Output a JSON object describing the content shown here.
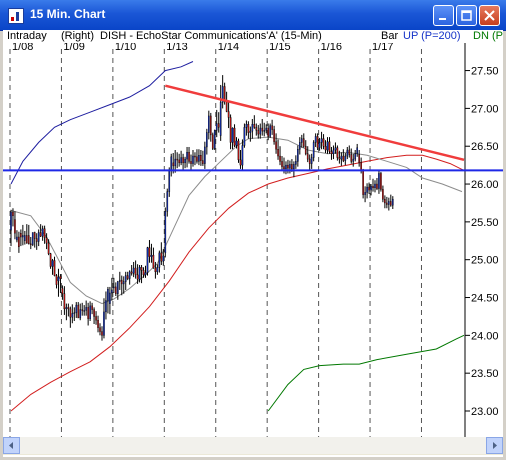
{
  "window": {
    "title": "15 Min. Chart"
  },
  "header": {
    "interval": "Intraday",
    "axis_side": "(Right)",
    "symbol": "DISH - EchoStar Communications'A' (15-Min)",
    "bar_mode": "Bar",
    "up_label": "UP (P=200)",
    "dn_label": "DN (P"
  },
  "colors": {
    "up": "#1432c8",
    "down": "#c81414",
    "ma_gray": "#8c8c8c",
    "ma_red": "#d21e1e",
    "dn_green": "#007800",
    "resistance": "#f03c3c",
    "support": "#1e28e6",
    "upper_band": "#1e1ea0"
  },
  "chart_data": {
    "type": "candlestick",
    "x_labels": [
      "1/08",
      "1/09",
      "1/10",
      "1/13",
      "1/14",
      "1/15",
      "1/16",
      "1/17"
    ],
    "ylim": [
      23.0,
      27.6
    ],
    "y_ticks": [
      "27.50",
      "27.00",
      "26.50",
      "26.00",
      "25.50",
      "25.00",
      "24.50",
      "24.00",
      "23.50",
      "23.00"
    ],
    "session_starts": [
      0,
      26,
      52,
      78,
      104,
      130,
      156,
      182,
      208
    ],
    "resistance_line": {
      "from": [
        78,
        27.3
      ],
      "to": [
        229,
        26.32
      ]
    },
    "support_line": {
      "from": [
        0,
        26.18
      ],
      "to": [
        229,
        26.18
      ]
    },
    "ohlc": [
      [
        25.39,
        25.66,
        25.18,
        25.63
      ],
      [
        25.63,
        25.68,
        25.44,
        25.58
      ],
      [
        25.53,
        25.64,
        25.27,
        25.35
      ],
      [
        25.26,
        25.39,
        25.23,
        25.3
      ],
      [
        25.3,
        25.37,
        25.09,
        25.17
      ],
      [
        25.35,
        25.4,
        25.18,
        25.3
      ],
      [
        25.3,
        25.46,
        25.19,
        25.32
      ],
      [
        25.25,
        25.38,
        25.2,
        25.32
      ],
      [
        25.32,
        25.47,
        25.21,
        25.22
      ],
      [
        25.32,
        25.46,
        25.2,
        25.21
      ],
      [
        25.21,
        25.3,
        25.14,
        25.2
      ],
      [
        25.2,
        25.36,
        25.18,
        25.36
      ],
      [
        25.36,
        25.37,
        25.16,
        25.28
      ],
      [
        25.28,
        25.35,
        25.13,
        25.24
      ],
      [
        25.24,
        25.4,
        25.18,
        25.36
      ],
      [
        25.36,
        25.47,
        25.3,
        25.31
      ],
      [
        25.31,
        25.45,
        25.25,
        25.41
      ],
      [
        25.41,
        25.45,
        25.21,
        25.29
      ],
      [
        25.29,
        25.35,
        25.14,
        25.22
      ],
      [
        25.22,
        25.27,
        25.06,
        25.08
      ],
      [
        25.08,
        25.09,
        24.88,
        24.91
      ],
      [
        24.91,
        25.01,
        24.8,
        24.99
      ],
      [
        24.99,
        25.04,
        24.78,
        24.79
      ],
      [
        24.79,
        24.81,
        24.62,
        24.67
      ],
      [
        24.72,
        24.88,
        24.51,
        24.77
      ],
      [
        24.78,
        24.81,
        24.56,
        24.75
      ],
      [
        24.62,
        24.66,
        24.47,
        24.55
      ],
      [
        24.55,
        24.65,
        24.27,
        24.35
      ],
      [
        24.35,
        24.42,
        24.2,
        24.37
      ],
      [
        24.37,
        24.42,
        24.25,
        24.35
      ],
      [
        24.35,
        24.38,
        24.1,
        24.24
      ],
      [
        24.24,
        24.41,
        24.16,
        24.29
      ],
      [
        24.29,
        24.37,
        24.19,
        24.3
      ],
      [
        24.3,
        24.44,
        24.23,
        24.4
      ],
      [
        24.4,
        24.44,
        24.23,
        24.23
      ],
      [
        24.23,
        24.42,
        24.2,
        24.34
      ],
      [
        24.34,
        24.43,
        24.26,
        24.33
      ],
      [
        24.33,
        24.4,
        24.26,
        24.33
      ],
      [
        24.33,
        24.46,
        24.26,
        24.37
      ],
      [
        24.37,
        24.43,
        24.13,
        24.22
      ],
      [
        24.22,
        24.45,
        24.19,
        24.39
      ],
      [
        24.39,
        24.43,
        24.28,
        24.34
      ],
      [
        24.34,
        24.37,
        24.15,
        24.25
      ],
      [
        24.25,
        24.32,
        24.14,
        24.2
      ],
      [
        24.2,
        24.26,
        24.04,
        24.1
      ],
      [
        24.1,
        24.16,
        24.0,
        24.05
      ],
      [
        24.05,
        24.12,
        23.93,
        24.0
      ],
      [
        24.0,
        24.49,
        23.96,
        24.31
      ],
      [
        24.31,
        24.58,
        24.21,
        24.46
      ],
      [
        24.46,
        24.64,
        24.29,
        24.61
      ],
      [
        24.42,
        24.64,
        24.28,
        24.56
      ],
      [
        24.56,
        24.76,
        24.46,
        24.6
      ],
      [
        24.64,
        24.76,
        24.56,
        24.64
      ],
      [
        24.64,
        24.7,
        24.52,
        24.55
      ],
      [
        24.55,
        24.72,
        24.47,
        24.71
      ],
      [
        24.71,
        24.84,
        24.6,
        24.73
      ],
      [
        24.73,
        24.79,
        24.53,
        24.68
      ],
      [
        24.68,
        24.78,
        24.55,
        24.71
      ],
      [
        24.71,
        24.84,
        24.6,
        24.79
      ],
      [
        24.79,
        24.84,
        24.73,
        24.75
      ],
      [
        24.75,
        24.86,
        24.67,
        24.84
      ],
      [
        24.84,
        24.93,
        24.79,
        24.82
      ],
      [
        24.82,
        24.97,
        24.77,
        24.89
      ],
      [
        24.89,
        24.99,
        24.75,
        24.8
      ],
      [
        24.8,
        24.94,
        24.68,
        24.74
      ],
      [
        24.74,
        24.93,
        24.7,
        24.9
      ],
      [
        24.9,
        24.93,
        24.69,
        24.86
      ],
      [
        24.86,
        24.9,
        24.76,
        24.8
      ],
      [
        24.8,
        24.92,
        24.76,
        24.83
      ],
      [
        24.83,
        25.17,
        24.79,
        25.16
      ],
      [
        25.16,
        25.26,
        24.96,
        25.04
      ],
      [
        25.04,
        25.21,
        24.96,
        25.06
      ],
      [
        25.06,
        25.16,
        24.88,
        24.89
      ],
      [
        24.89,
        24.97,
        24.75,
        24.84
      ],
      [
        24.84,
        24.94,
        24.8,
        24.9
      ],
      [
        24.9,
        25.12,
        24.83,
        25.09
      ],
      [
        25.09,
        25.23,
        24.93,
        24.98
      ],
      [
        24.98,
        25.14,
        24.92,
        25.05
      ],
      [
        25.09,
        25.69,
        25.03,
        25.64
      ],
      [
        25.64,
        25.94,
        25.57,
        25.9
      ],
      [
        25.9,
        26.22,
        25.83,
        26.18
      ],
      [
        26.18,
        26.4,
        26.1,
        26.36
      ],
      [
        26.28,
        26.41,
        26.14,
        26.24
      ],
      [
        26.24,
        26.45,
        26.15,
        26.33
      ],
      [
        26.33,
        26.42,
        26.21,
        26.32
      ],
      [
        26.32,
        26.4,
        26.23,
        26.28
      ],
      [
        26.28,
        26.44,
        26.25,
        26.35
      ],
      [
        26.35,
        26.4,
        26.19,
        26.28
      ],
      [
        26.28,
        26.36,
        26.21,
        26.33
      ],
      [
        26.33,
        26.49,
        26.22,
        26.42
      ],
      [
        26.42,
        26.49,
        26.27,
        26.3
      ],
      [
        26.3,
        26.39,
        26.18,
        26.27
      ],
      [
        26.27,
        26.45,
        26.23,
        26.37
      ],
      [
        26.37,
        26.42,
        26.25,
        26.36
      ],
      [
        26.36,
        26.46,
        26.27,
        26.3
      ],
      [
        26.3,
        26.46,
        26.25,
        26.38
      ],
      [
        26.38,
        26.45,
        26.24,
        26.31
      ],
      [
        26.31,
        26.44,
        26.24,
        26.27
      ],
      [
        26.27,
        26.56,
        26.2,
        26.49
      ],
      [
        26.49,
        26.73,
        26.39,
        26.68
      ],
      [
        26.68,
        26.97,
        26.59,
        26.9
      ],
      [
        26.9,
        26.94,
        26.56,
        26.65
      ],
      [
        26.65,
        26.68,
        26.45,
        26.47
      ],
      [
        26.47,
        26.72,
        26.45,
        26.71
      ],
      [
        26.71,
        26.98,
        26.62,
        26.8
      ],
      [
        26.8,
        26.95,
        26.68,
        26.75
      ],
      [
        26.64,
        27.31,
        26.57,
        27.08
      ],
      [
        27.08,
        27.44,
        27.0,
        27.29
      ],
      [
        27.29,
        27.34,
        27.05,
        27.09
      ],
      [
        27.09,
        27.22,
        26.95,
        26.96
      ],
      [
        26.96,
        27.08,
        26.74,
        26.88
      ],
      [
        26.88,
        26.92,
        26.46,
        26.55
      ],
      [
        26.55,
        26.75,
        26.46,
        26.74
      ],
      [
        26.74,
        26.79,
        26.49,
        26.51
      ],
      [
        26.51,
        26.62,
        26.47,
        26.57
      ],
      [
        26.57,
        26.6,
        26.28,
        26.32
      ],
      [
        26.32,
        26.45,
        26.2,
        26.25
      ],
      [
        26.25,
        26.59,
        26.19,
        26.51
      ],
      [
        26.51,
        26.8,
        26.48,
        26.75
      ],
      [
        26.75,
        26.84,
        26.64,
        26.79
      ],
      [
        26.79,
        26.83,
        26.6,
        26.68
      ],
      [
        26.68,
        26.76,
        26.56,
        26.7
      ],
      [
        26.7,
        26.86,
        26.6,
        26.79
      ],
      [
        26.79,
        26.91,
        26.73,
        26.75
      ],
      [
        26.75,
        26.8,
        26.64,
        26.71
      ],
      [
        26.71,
        26.78,
        26.6,
        26.66
      ],
      [
        26.66,
        26.8,
        26.6,
        26.74
      ],
      [
        26.74,
        26.86,
        26.64,
        26.7
      ],
      [
        26.7,
        26.81,
        26.63,
        26.71
      ],
      [
        26.71,
        26.79,
        26.67,
        26.74
      ],
      [
        26.74,
        26.8,
        26.58,
        26.63
      ],
      [
        26.63,
        26.8,
        26.61,
        26.77
      ],
      [
        26.77,
        26.85,
        26.65,
        26.72
      ],
      [
        26.72,
        26.77,
        26.52,
        26.56
      ],
      [
        26.56,
        26.67,
        26.4,
        26.46
      ],
      [
        26.46,
        26.59,
        26.32,
        26.37
      ],
      [
        26.37,
        26.5,
        26.25,
        26.3
      ],
      [
        26.3,
        26.37,
        26.17,
        26.23
      ],
      [
        26.23,
        26.35,
        26.14,
        26.2
      ],
      [
        26.2,
        26.3,
        26.13,
        26.25
      ],
      [
        26.25,
        26.32,
        26.14,
        26.21
      ],
      [
        26.21,
        26.31,
        26.14,
        26.26
      ],
      [
        26.26,
        26.33,
        26.16,
        26.2
      ],
      [
        26.2,
        26.3,
        26.09,
        26.26
      ],
      [
        26.26,
        26.38,
        26.2,
        26.3
      ],
      [
        26.3,
        26.51,
        26.23,
        26.46
      ],
      [
        26.46,
        26.62,
        26.39,
        26.55
      ],
      [
        26.55,
        26.65,
        26.48,
        26.6
      ],
      [
        26.6,
        26.67,
        26.48,
        26.5
      ],
      [
        26.5,
        26.58,
        26.38,
        26.4
      ],
      [
        26.4,
        26.5,
        26.29,
        26.33
      ],
      [
        26.33,
        26.39,
        26.18,
        26.27
      ],
      [
        26.27,
        26.4,
        26.2,
        26.35
      ],
      [
        26.35,
        26.58,
        26.3,
        26.55
      ],
      [
        26.55,
        26.67,
        26.49,
        26.63
      ],
      [
        26.63,
        26.67,
        26.45,
        26.48
      ],
      [
        26.48,
        26.61,
        26.44,
        26.55
      ],
      [
        26.55,
        26.69,
        26.46,
        26.6
      ],
      [
        26.6,
        26.66,
        26.46,
        26.5
      ],
      [
        26.5,
        26.58,
        26.41,
        26.45
      ],
      [
        26.45,
        26.62,
        26.4,
        26.56
      ],
      [
        26.56,
        26.62,
        26.4,
        26.43
      ],
      [
        26.43,
        26.49,
        26.32,
        26.4
      ],
      [
        26.4,
        26.51,
        26.33,
        26.45
      ],
      [
        26.45,
        26.55,
        26.4,
        26.48
      ],
      [
        26.48,
        26.51,
        26.31,
        26.35
      ],
      [
        26.35,
        26.44,
        26.27,
        26.33
      ],
      [
        26.33,
        26.42,
        26.24,
        26.37
      ],
      [
        26.37,
        26.46,
        26.29,
        26.31
      ],
      [
        26.31,
        26.41,
        26.25,
        26.37
      ],
      [
        26.37,
        26.49,
        26.33,
        26.45
      ],
      [
        26.45,
        26.51,
        26.35,
        26.39
      ],
      [
        26.39,
        26.47,
        26.27,
        26.3
      ],
      [
        26.3,
        26.4,
        26.23,
        26.33
      ],
      [
        26.33,
        26.45,
        26.3,
        26.4
      ],
      [
        26.4,
        26.53,
        26.36,
        26.48
      ],
      [
        26.39,
        26.45,
        26.23,
        26.28
      ],
      [
        26.28,
        26.35,
        26.14,
        26.18
      ],
      [
        26.18,
        26.2,
        25.81,
        25.86
      ],
      [
        25.86,
        25.97,
        25.76,
        25.89
      ],
      [
        25.89,
        26.01,
        25.81,
        25.96
      ],
      [
        25.96,
        26.02,
        25.87,
        25.92
      ],
      [
        25.92,
        26.0,
        25.85,
        25.97
      ],
      [
        25.97,
        26.07,
        25.9,
        25.95
      ],
      [
        25.95,
        26.05,
        25.89,
        26.0
      ],
      [
        26.0,
        26.08,
        25.92,
        25.94
      ],
      [
        25.94,
        26.18,
        25.87,
        26.14
      ],
      [
        26.14,
        26.16,
        25.9,
        25.93
      ],
      [
        25.93,
        25.98,
        25.76,
        25.8
      ],
      [
        25.8,
        25.85,
        25.68,
        25.75
      ],
      [
        25.75,
        25.83,
        25.68,
        25.73
      ],
      [
        25.73,
        25.82,
        25.65,
        25.77
      ],
      [
        25.77,
        25.86,
        25.7,
        25.72
      ],
      [
        25.72,
        25.84,
        25.67,
        25.8
      ]
    ],
    "ma_gray": [
      [
        0,
        25.65
      ],
      [
        10,
        25.58
      ],
      [
        18,
        25.3
      ],
      [
        24,
        25.0
      ],
      [
        30,
        24.7
      ],
      [
        38,
        24.52
      ],
      [
        46,
        24.42
      ],
      [
        52,
        24.48
      ],
      [
        60,
        24.62
      ],
      [
        68,
        24.8
      ],
      [
        74,
        24.95
      ],
      [
        82,
        25.4
      ],
      [
        90,
        25.85
      ],
      [
        98,
        26.1
      ],
      [
        106,
        26.3
      ],
      [
        114,
        26.5
      ],
      [
        120,
        26.6
      ],
      [
        130,
        26.62
      ],
      [
        140,
        26.58
      ],
      [
        150,
        26.45
      ],
      [
        160,
        26.4
      ],
      [
        170,
        26.42
      ],
      [
        180,
        26.38
      ],
      [
        190,
        26.3
      ],
      [
        200,
        26.22
      ],
      [
        208,
        26.08
      ],
      [
        218,
        26.0
      ],
      [
        228,
        25.9
      ]
    ],
    "ma_red": [
      [
        0,
        23.0
      ],
      [
        10,
        23.22
      ],
      [
        20,
        23.38
      ],
      [
        30,
        23.52
      ],
      [
        40,
        23.65
      ],
      [
        50,
        23.85
      ],
      [
        60,
        24.1
      ],
      [
        70,
        24.38
      ],
      [
        80,
        24.72
      ],
      [
        90,
        25.1
      ],
      [
        100,
        25.42
      ],
      [
        110,
        25.68
      ],
      [
        120,
        25.88
      ],
      [
        130,
        26.0
      ],
      [
        140,
        26.08
      ],
      [
        150,
        26.14
      ],
      [
        160,
        26.2
      ],
      [
        170,
        26.25
      ],
      [
        180,
        26.3
      ],
      [
        190,
        26.35
      ],
      [
        200,
        26.38
      ],
      [
        208,
        26.38
      ],
      [
        215,
        26.33
      ],
      [
        222,
        26.27
      ],
      [
        229,
        26.18
      ]
    ],
    "upper_band": [
      [
        0,
        26.0
      ],
      [
        6,
        26.3
      ],
      [
        14,
        26.55
      ],
      [
        22,
        26.75
      ],
      [
        30,
        26.85
      ],
      [
        40,
        26.95
      ],
      [
        50,
        27.05
      ],
      [
        60,
        27.15
      ],
      [
        70,
        27.3
      ],
      [
        78,
        27.5
      ],
      [
        86,
        27.55
      ],
      [
        92,
        27.62
      ]
    ],
    "dn_line": [
      [
        130,
        23.0
      ],
      [
        140,
        23.35
      ],
      [
        148,
        23.55
      ],
      [
        156,
        23.6
      ],
      [
        168,
        23.62
      ],
      [
        176,
        23.62
      ],
      [
        185,
        23.68
      ],
      [
        200,
        23.75
      ],
      [
        215,
        23.82
      ],
      [
        225,
        23.95
      ],
      [
        229,
        24.0
      ]
    ]
  }
}
